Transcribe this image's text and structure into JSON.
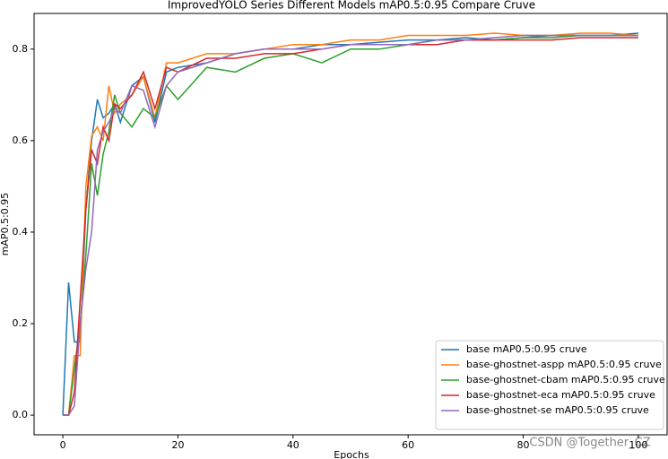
{
  "chart_data": {
    "type": "line",
    "title": "ImprovedYOLO Series Different Models mAP0.5:0.95 Compare Cruve",
    "x_label": "Epochs",
    "y_label": "mAP0.5:0.95",
    "annotation": "CSDN @Together_CZ",
    "x": [
      0,
      1,
      2,
      3,
      4,
      5,
      6,
      7,
      8,
      9,
      10,
      12,
      14,
      16,
      18,
      20,
      25,
      30,
      35,
      40,
      45,
      50,
      55,
      60,
      65,
      70,
      75,
      80,
      85,
      90,
      95,
      100
    ],
    "series": [
      {
        "name": "base mAP0.5:0.95 cruve",
        "color": "#1f77b4",
        "values": [
          0,
          0.29,
          0.16,
          0.16,
          0.45,
          0.6,
          0.69,
          0.65,
          0.66,
          0.68,
          0.64,
          0.72,
          0.74,
          0.64,
          0.75,
          0.76,
          0.77,
          0.79,
          0.8,
          0.8,
          0.81,
          0.81,
          0.815,
          0.82,
          0.82,
          0.825,
          0.82,
          0.825,
          0.83,
          0.83,
          0.83,
          0.835
        ]
      },
      {
        "name": "base-ghostnet-aspp mAP0.5:0.95 cruve",
        "color": "#ff7f0e",
        "values": [
          0,
          0,
          0.13,
          0.13,
          0.5,
          0.61,
          0.63,
          0.6,
          0.72,
          0.66,
          0.68,
          0.7,
          0.74,
          0.65,
          0.77,
          0.77,
          0.79,
          0.79,
          0.8,
          0.81,
          0.81,
          0.82,
          0.82,
          0.83,
          0.83,
          0.83,
          0.835,
          0.83,
          0.83,
          0.835,
          0.835,
          0.83
        ]
      },
      {
        "name": "base-ghostnet-cbam mAP0.5:0.95 cruve",
        "color": "#2ca02c",
        "values": [
          0,
          0,
          0.1,
          0.2,
          0.35,
          0.55,
          0.48,
          0.57,
          0.62,
          0.7,
          0.66,
          0.63,
          0.67,
          0.65,
          0.72,
          0.69,
          0.76,
          0.75,
          0.78,
          0.79,
          0.77,
          0.8,
          0.8,
          0.81,
          0.82,
          0.82,
          0.82,
          0.825,
          0.825,
          0.83,
          0.83,
          0.83
        ]
      },
      {
        "name": "base-ghostnet-eca mAP0.5:0.95 cruve",
        "color": "#d62728",
        "values": [
          0,
          0,
          0.05,
          0.25,
          0.45,
          0.58,
          0.55,
          0.63,
          0.6,
          0.68,
          0.67,
          0.7,
          0.75,
          0.67,
          0.76,
          0.75,
          0.78,
          0.78,
          0.79,
          0.79,
          0.8,
          0.81,
          0.81,
          0.81,
          0.81,
          0.82,
          0.82,
          0.82,
          0.82,
          0.825,
          0.825,
          0.825
        ]
      },
      {
        "name": "base-ghostnet-se mAP0.5:0.95 cruve",
        "color": "#9467bd",
        "values": [
          0,
          0,
          0.02,
          0.2,
          0.32,
          0.4,
          0.58,
          0.62,
          0.64,
          0.67,
          0.66,
          0.72,
          0.71,
          0.63,
          0.72,
          0.75,
          0.77,
          0.79,
          0.8,
          0.8,
          0.8,
          0.81,
          0.81,
          0.81,
          0.82,
          0.82,
          0.825,
          0.83,
          0.83,
          0.83,
          0.83,
          0.83
        ]
      }
    ],
    "xlim": [
      -5,
      105
    ],
    "ylim": [
      -0.043,
      0.878
    ],
    "xticks": [
      0,
      20,
      40,
      60,
      80,
      100
    ],
    "yticks": [
      {
        "value": 0,
        "label": "0.0"
      },
      0.2,
      0.4,
      0.6,
      0.8
    ],
    "legend": "lower right"
  }
}
